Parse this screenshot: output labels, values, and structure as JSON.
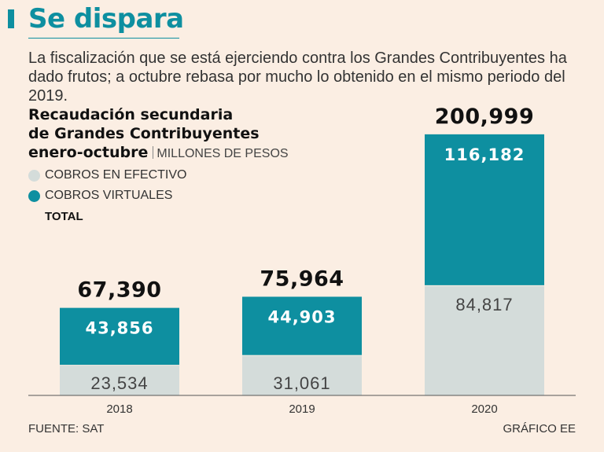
{
  "header": {
    "headline": "Se dispara",
    "subtitle": "La fiscalización que se está ejerciendo contra los Grandes Contribuyentes ha dado frutos; a octubre rebasa por mucho lo obtenido en el mismo periodo del 2019."
  },
  "chart_data": {
    "type": "bar",
    "stacked": true,
    "title_lines": [
      "Recaudación secundaria",
      "de Grandes Contribuyentes",
      "enero-octubre"
    ],
    "unit": "MILLONES DE PESOS",
    "categories": [
      "2018",
      "2019",
      "2020"
    ],
    "series": [
      {
        "name": "COBROS EN EFECTIVO",
        "color": "#d4dcda",
        "values": [
          23534,
          31061,
          84817
        ],
        "labels": [
          "23,534",
          "31,061",
          "84,817"
        ]
      },
      {
        "name": "COBROS VIRTUALES",
        "color": "#0e8fa0",
        "values": [
          43856,
          44903,
          116182
        ],
        "labels": [
          "43,856",
          "44,903",
          "116,182"
        ]
      }
    ],
    "totals": [
      67390,
      75964,
      200999
    ],
    "total_labels": [
      "67,390",
      "75,964",
      "200,999"
    ],
    "total_legend": "TOTAL",
    "ylim": [
      0,
      210000
    ],
    "grid": false,
    "legend_position": "top-left"
  },
  "footer": {
    "source": "FUENTE: SAT",
    "credit": "GRÁFICO EE"
  }
}
